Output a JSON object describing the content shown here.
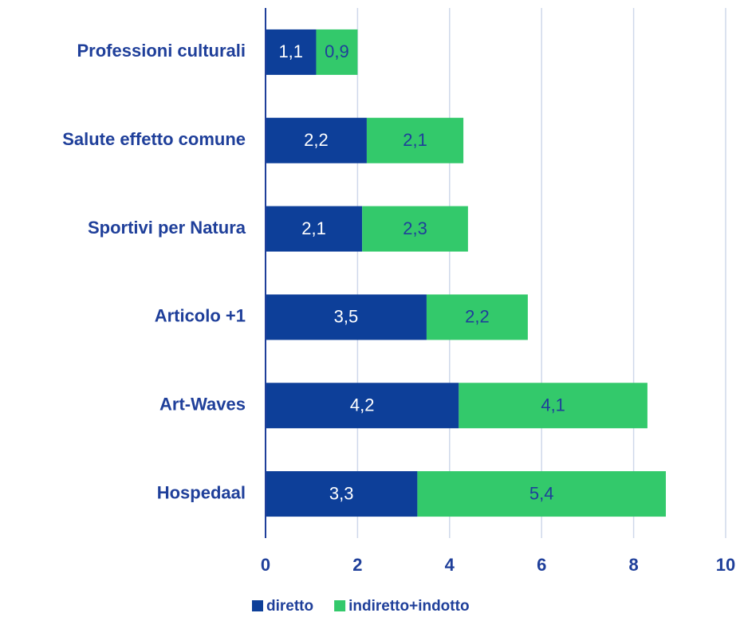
{
  "chart_data": {
    "type": "stacked-barh",
    "categories": [
      "Professioni culturali",
      "Salute effetto comune",
      "Sportivi per Natura",
      "Articolo +1",
      "Art-Waves",
      "Hospedaal"
    ],
    "series": [
      {
        "name": "diretto",
        "color": "#0d3f99",
        "values": [
          1.1,
          2.2,
          2.1,
          3.5,
          4.2,
          3.3
        ],
        "value_labels": [
          "1,1",
          "2,2",
          "2,1",
          "3,5",
          "4,2",
          "3,3"
        ]
      },
      {
        "name": "indiretto+indotto",
        "color": "#33c96b",
        "values": [
          0.9,
          2.1,
          2.3,
          2.2,
          4.1,
          5.4
        ],
        "value_labels": [
          "0,9",
          "2,1",
          "2,3",
          "2,2",
          "4,1",
          "5,4"
        ]
      }
    ],
    "xlim": [
      0,
      10
    ],
    "xticks": [
      0,
      2,
      4,
      6,
      8,
      10
    ],
    "grid": true,
    "legend": "bottom"
  }
}
